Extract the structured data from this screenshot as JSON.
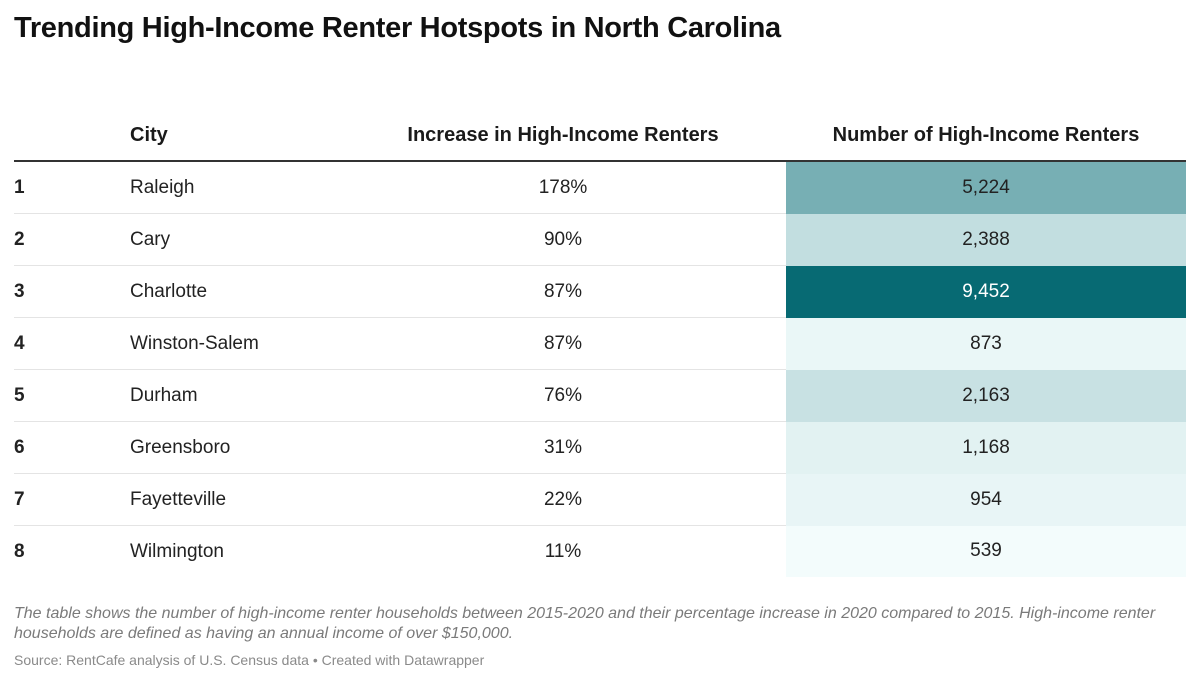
{
  "title": "Trending High-Income Renter Hotspots in North Carolina",
  "columns": {
    "rank": "",
    "city": "City",
    "increase": "Increase in High-Income Renters",
    "number": "Number of High-Income Renters"
  },
  "chart_data": {
    "type": "table",
    "title": "Trending High-Income Renter Hotspots in North Carolina",
    "columns": [
      "",
      "City",
      "Increase in High-Income Renters",
      "Number of High-Income Renters"
    ],
    "rows": [
      {
        "rank": "1",
        "city": "Raleigh",
        "increase": "178%",
        "number": "5,224",
        "number_value": 5224
      },
      {
        "rank": "2",
        "city": "Cary",
        "increase": "90%",
        "number": "2,388",
        "number_value": 2388
      },
      {
        "rank": "3",
        "city": "Charlotte",
        "increase": "87%",
        "number": "9,452",
        "number_value": 9452
      },
      {
        "rank": "4",
        "city": "Winston-Salem",
        "increase": "87%",
        "number": "873",
        "number_value": 873
      },
      {
        "rank": "5",
        "city": "Durham",
        "increase": "76%",
        "number": "2,163",
        "number_value": 2163
      },
      {
        "rank": "6",
        "city": "Greensboro",
        "increase": "31%",
        "number": "1,168",
        "number_value": 1168
      },
      {
        "rank": "7",
        "city": "Fayetteville",
        "increase": "22%",
        "number": "954",
        "number_value": 954
      },
      {
        "rank": "8",
        "city": "Wilmington",
        "increase": "11%",
        "number": "539",
        "number_value": 539
      }
    ],
    "heatmap_colors": {
      "low": "#f3fcfc",
      "high": "#076a73"
    }
  },
  "notes": "The table shows the number of high-income renter households between 2015-2020 and their percentage increase in 2020 compared to 2015. High-income renter households are defined as having an annual income of over $150,000.",
  "source": "Source: RentCafe analysis of U.S. Census data • Created with Datawrapper"
}
